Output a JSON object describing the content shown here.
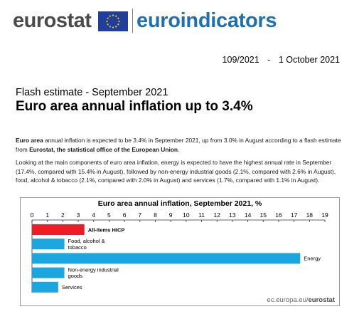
{
  "header": {
    "brand": "eurostat",
    "product": "euroindicators"
  },
  "release": {
    "number": "109/2021",
    "separator": "-",
    "date": "1 October 2021"
  },
  "kicker": "Flash estimate - September 2021",
  "title": "Euro area annual inflation up to 3.4%",
  "paragraphs": {
    "p1": {
      "lead": "Euro area",
      "mid": " annual inflation is expected to be 3.4% in September 2021, up from 3.0% in August according to a flash estimate from ",
      "strong": "Eurostat, the statistical office of the European Union",
      "end": "."
    },
    "p2": "Looking at the main components of euro area inflation, energy is expected to have the highest annual rate in September (17.4%, compared with 15.4% in August), followed by non-energy industrial goods (2.1%, compared with 2.6% in August), food, alcohol & tobacco (2.1%, compared with 2.0% in August) and services (1.7%, compared with 1.1% in August)."
  },
  "chart_data": {
    "type": "bar",
    "orientation": "horizontal",
    "title": "Euro area annual inflation, September 2021, %",
    "categories": [
      "All-items HICP",
      "Food, alcohol & tobacco",
      "Energy",
      "Non-energy industrial goods",
      "Services"
    ],
    "label_lines": [
      [
        "All-items HICP"
      ],
      [
        "Food, alcohol &",
        "tobacco"
      ],
      [
        "Energy"
      ],
      [
        "Non-energy industrial",
        "goods"
      ],
      [
        "Services"
      ]
    ],
    "values": [
      3.4,
      2.1,
      17.4,
      2.1,
      1.7
    ],
    "colors": [
      "#ee1c25",
      "#1ba6e0",
      "#1ba6e0",
      "#1ba6e0",
      "#1ba6e0"
    ],
    "highlight_label": [
      true,
      false,
      false,
      false,
      false
    ],
    "xlim": [
      0,
      19
    ],
    "ticks": [
      0,
      1,
      2,
      3,
      4,
      5,
      6,
      7,
      8,
      9,
      10,
      11,
      12,
      13,
      14,
      15,
      16,
      17,
      18,
      19
    ],
    "xaxis_position": "top",
    "grid": false,
    "legend": "none"
  },
  "source": {
    "prefix": "ec.europa.eu/",
    "brand": "eurostat"
  },
  "colors": {
    "brand_blue": "#1e6fb4",
    "eu_blue": "#1f3f9a",
    "eu_gold": "#ffcc00",
    "hicp_red": "#ee1c25",
    "component_blue": "#1ba6e0"
  }
}
